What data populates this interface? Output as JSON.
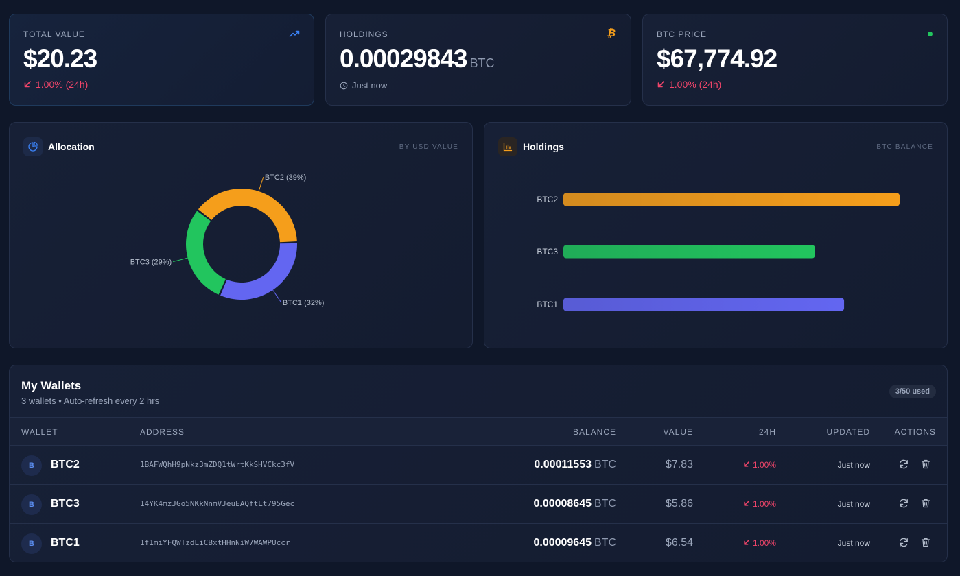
{
  "stats": {
    "total_value": {
      "label": "Total Value",
      "value": "$20.23",
      "change": "1.00% (24h)",
      "icon": "trending-up-icon"
    },
    "holdings": {
      "label": "Holdings",
      "value": "0.00029843",
      "unit": "BTC",
      "sub": "Just now",
      "icon": "bitcoin-icon"
    },
    "btc_price": {
      "label": "BTC Price",
      "value": "$67,774.92",
      "change": "1.00% (24h)",
      "indicator": "live-dot"
    }
  },
  "allocation": {
    "title": "Allocation",
    "tag": "By USD Value",
    "icon": "pie-chart-icon"
  },
  "holdings_panel": {
    "title": "Holdings",
    "tag": "BTC Balance",
    "icon": "bar-chart-icon"
  },
  "chart_data": [
    {
      "type": "pie",
      "title": "",
      "slices": [
        {
          "name": "BTC2",
          "label": "BTC2 (39%)",
          "value": 39,
          "color": "#f59e1b"
        },
        {
          "name": "BTC1",
          "label": "BTC1 (32%)",
          "value": 32,
          "color": "#6366f1"
        },
        {
          "name": "BTC3",
          "label": "BTC3 (29%)",
          "value": 29,
          "color": "#22c55e"
        }
      ]
    },
    {
      "type": "bar",
      "orientation": "horizontal",
      "title": "",
      "categories": [
        "BTC2",
        "BTC3",
        "BTC1"
      ],
      "values": [
        0.00011553,
        8.645e-05,
        9.645e-05
      ],
      "colors": [
        "#f59e1b",
        "#22c55e",
        "#6366f1"
      ],
      "xlim": [
        0,
        0.00011553
      ]
    }
  ],
  "wallets": {
    "title": "My Wallets",
    "subtitle": "3 wallets • Auto-refresh every 2 hrs",
    "badge": "3/50 used",
    "columns": {
      "wallet": "Wallet",
      "address": "Address",
      "balance": "Balance",
      "value": "Value",
      "change": "24H",
      "updated": "Updated",
      "actions": "Actions"
    },
    "rows": [
      {
        "avatar": "B",
        "name": "BTC2",
        "address": "1BAFWQhH9pNkz3mZDQ1tWrtKkSHVCkc3fV",
        "balance": "0.00011553",
        "unit": "BTC",
        "value": "$7.83",
        "change": "1.00%",
        "updated": "Just now"
      },
      {
        "avatar": "B",
        "name": "BTC3",
        "address": "14YK4mzJGo5NKkNnmVJeuEAQftLt795Gec",
        "balance": "0.00008645",
        "unit": "BTC",
        "value": "$5.86",
        "change": "1.00%",
        "updated": "Just now"
      },
      {
        "avatar": "B",
        "name": "BTC1",
        "address": "1f1miYFQWTzdLiCBxtHHnNiW7WAWPUccr",
        "balance": "0.00009645",
        "unit": "BTC",
        "value": "$6.54",
        "change": "1.00%",
        "updated": "Just now"
      }
    ]
  }
}
